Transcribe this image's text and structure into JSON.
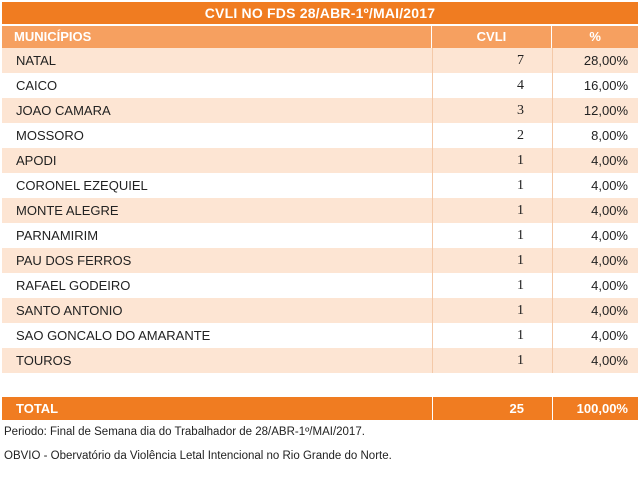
{
  "title": "CVLI NO FDS 28/ABR-1º/MAI/2017",
  "headers": {
    "municipios": "MUNICÍPIOS",
    "cvli": "CVLI",
    "percent": "%"
  },
  "rows": [
    {
      "municipio": "NATAL",
      "cvli": "7",
      "percent": "28,00%"
    },
    {
      "municipio": "CAICO",
      "cvli": "4",
      "percent": "16,00%"
    },
    {
      "municipio": "JOAO CAMARA",
      "cvli": "3",
      "percent": "12,00%"
    },
    {
      "municipio": "MOSSORO",
      "cvli": "2",
      "percent": "8,00%"
    },
    {
      "municipio": "APODI",
      "cvli": "1",
      "percent": "4,00%"
    },
    {
      "municipio": "CORONEL EZEQUIEL",
      "cvli": "1",
      "percent": "4,00%"
    },
    {
      "municipio": "MONTE ALEGRE",
      "cvli": "1",
      "percent": "4,00%"
    },
    {
      "municipio": "PARNAMIRIM",
      "cvli": "1",
      "percent": "4,00%"
    },
    {
      "municipio": "PAU DOS FERROS",
      "cvli": "1",
      "percent": "4,00%"
    },
    {
      "municipio": "RAFAEL GODEIRO",
      "cvli": "1",
      "percent": "4,00%"
    },
    {
      "municipio": "SANTO ANTONIO",
      "cvli": "1",
      "percent": "4,00%"
    },
    {
      "municipio": "SAO GONCALO DO AMARANTE",
      "cvli": "1",
      "percent": "4,00%"
    },
    {
      "municipio": "TOUROS",
      "cvli": "1",
      "percent": "4,00%"
    }
  ],
  "total": {
    "label": "TOTAL",
    "cvli": "25",
    "percent": "100,00%"
  },
  "footer": {
    "periodo": "Periodo: Final de Semana dia do Trabalhador de 28/ABR-1º/MAI/2017.",
    "fonte": "OBVIO - Obervatório da Violência Letal Intencional no Rio Grande do Norte."
  },
  "colors": {
    "accent": "#f07c21",
    "header": "#f6a060",
    "stripe": "#fde5d3"
  }
}
